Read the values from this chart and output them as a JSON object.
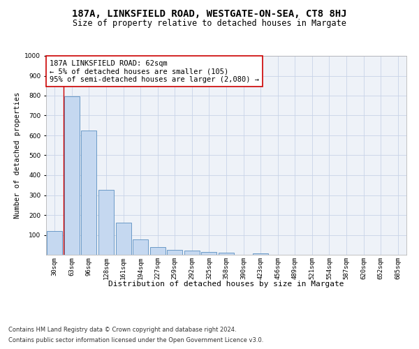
{
  "title": "187A, LINKSFIELD ROAD, WESTGATE-ON-SEA, CT8 8HJ",
  "subtitle": "Size of property relative to detached houses in Margate",
  "xlabel": "Distribution of detached houses by size in Margate",
  "ylabel": "Number of detached properties",
  "categories": [
    "30sqm",
    "63sqm",
    "96sqm",
    "128sqm",
    "161sqm",
    "194sqm",
    "227sqm",
    "259sqm",
    "292sqm",
    "325sqm",
    "358sqm",
    "390sqm",
    "423sqm",
    "456sqm",
    "489sqm",
    "521sqm",
    "554sqm",
    "587sqm",
    "620sqm",
    "652sqm",
    "685sqm"
  ],
  "values": [
    120,
    795,
    625,
    325,
    160,
    78,
    38,
    25,
    22,
    15,
    10,
    0,
    8,
    0,
    0,
    0,
    0,
    0,
    0,
    0,
    0
  ],
  "bar_color": "#c5d8f0",
  "bar_edge_color": "#5a8fc0",
  "grid_color": "#c8d4e8",
  "background_color": "#ffffff",
  "annotation_box_text": "187A LINKSFIELD ROAD: 62sqm\n← 5% of detached houses are smaller (105)\n95% of semi-detached houses are larger (2,080) →",
  "annotation_box_color": "#ffffff",
  "annotation_box_edge_color": "#cc0000",
  "marker_line_color": "#cc0000",
  "ylim": [
    0,
    1000
  ],
  "yticks": [
    0,
    100,
    200,
    300,
    400,
    500,
    600,
    700,
    800,
    900,
    1000
  ],
  "footer_line1": "Contains HM Land Registry data © Crown copyright and database right 2024.",
  "footer_line2": "Contains public sector information licensed under the Open Government Licence v3.0.",
  "title_fontsize": 10,
  "subtitle_fontsize": 8.5,
  "annotation_fontsize": 7.5,
  "tick_fontsize": 6.5,
  "ylabel_fontsize": 7.5,
  "xlabel_fontsize": 8,
  "footer_fontsize": 6
}
